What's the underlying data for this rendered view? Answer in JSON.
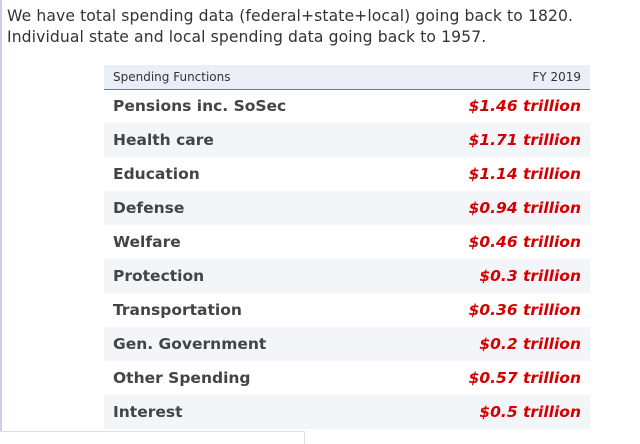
{
  "intro": {
    "line1": "We have total spending data (federal+state+local) going back to 1820.",
    "line2": "Individual state and local spending data going back to 1957."
  },
  "table": {
    "headers": {
      "function": "Spending Functions",
      "year": "FY 2019"
    },
    "rows": [
      {
        "function": "Pensions inc. SoSec",
        "value": "$1.46 trillion"
      },
      {
        "function": "Health care",
        "value": "$1.71 trillion"
      },
      {
        "function": "Education",
        "value": "$1.14 trillion"
      },
      {
        "function": "Defense",
        "value": "$0.94 trillion"
      },
      {
        "function": "Welfare",
        "value": "$0.46 trillion"
      },
      {
        "function": "Protection",
        "value": "$0.3 trillion"
      },
      {
        "function": "Transportation",
        "value": "$0.36 trillion"
      },
      {
        "function": "Gen. Government",
        "value": "$0.2 trillion"
      },
      {
        "function": "Other Spending",
        "value": "$0.57 trillion"
      },
      {
        "function": "Interest",
        "value": "$0.5 trillion"
      }
    ]
  },
  "colors": {
    "value_text": "#d40000",
    "header_bg": "#e9eef7",
    "stripe_bg": "#f3f5f9"
  }
}
